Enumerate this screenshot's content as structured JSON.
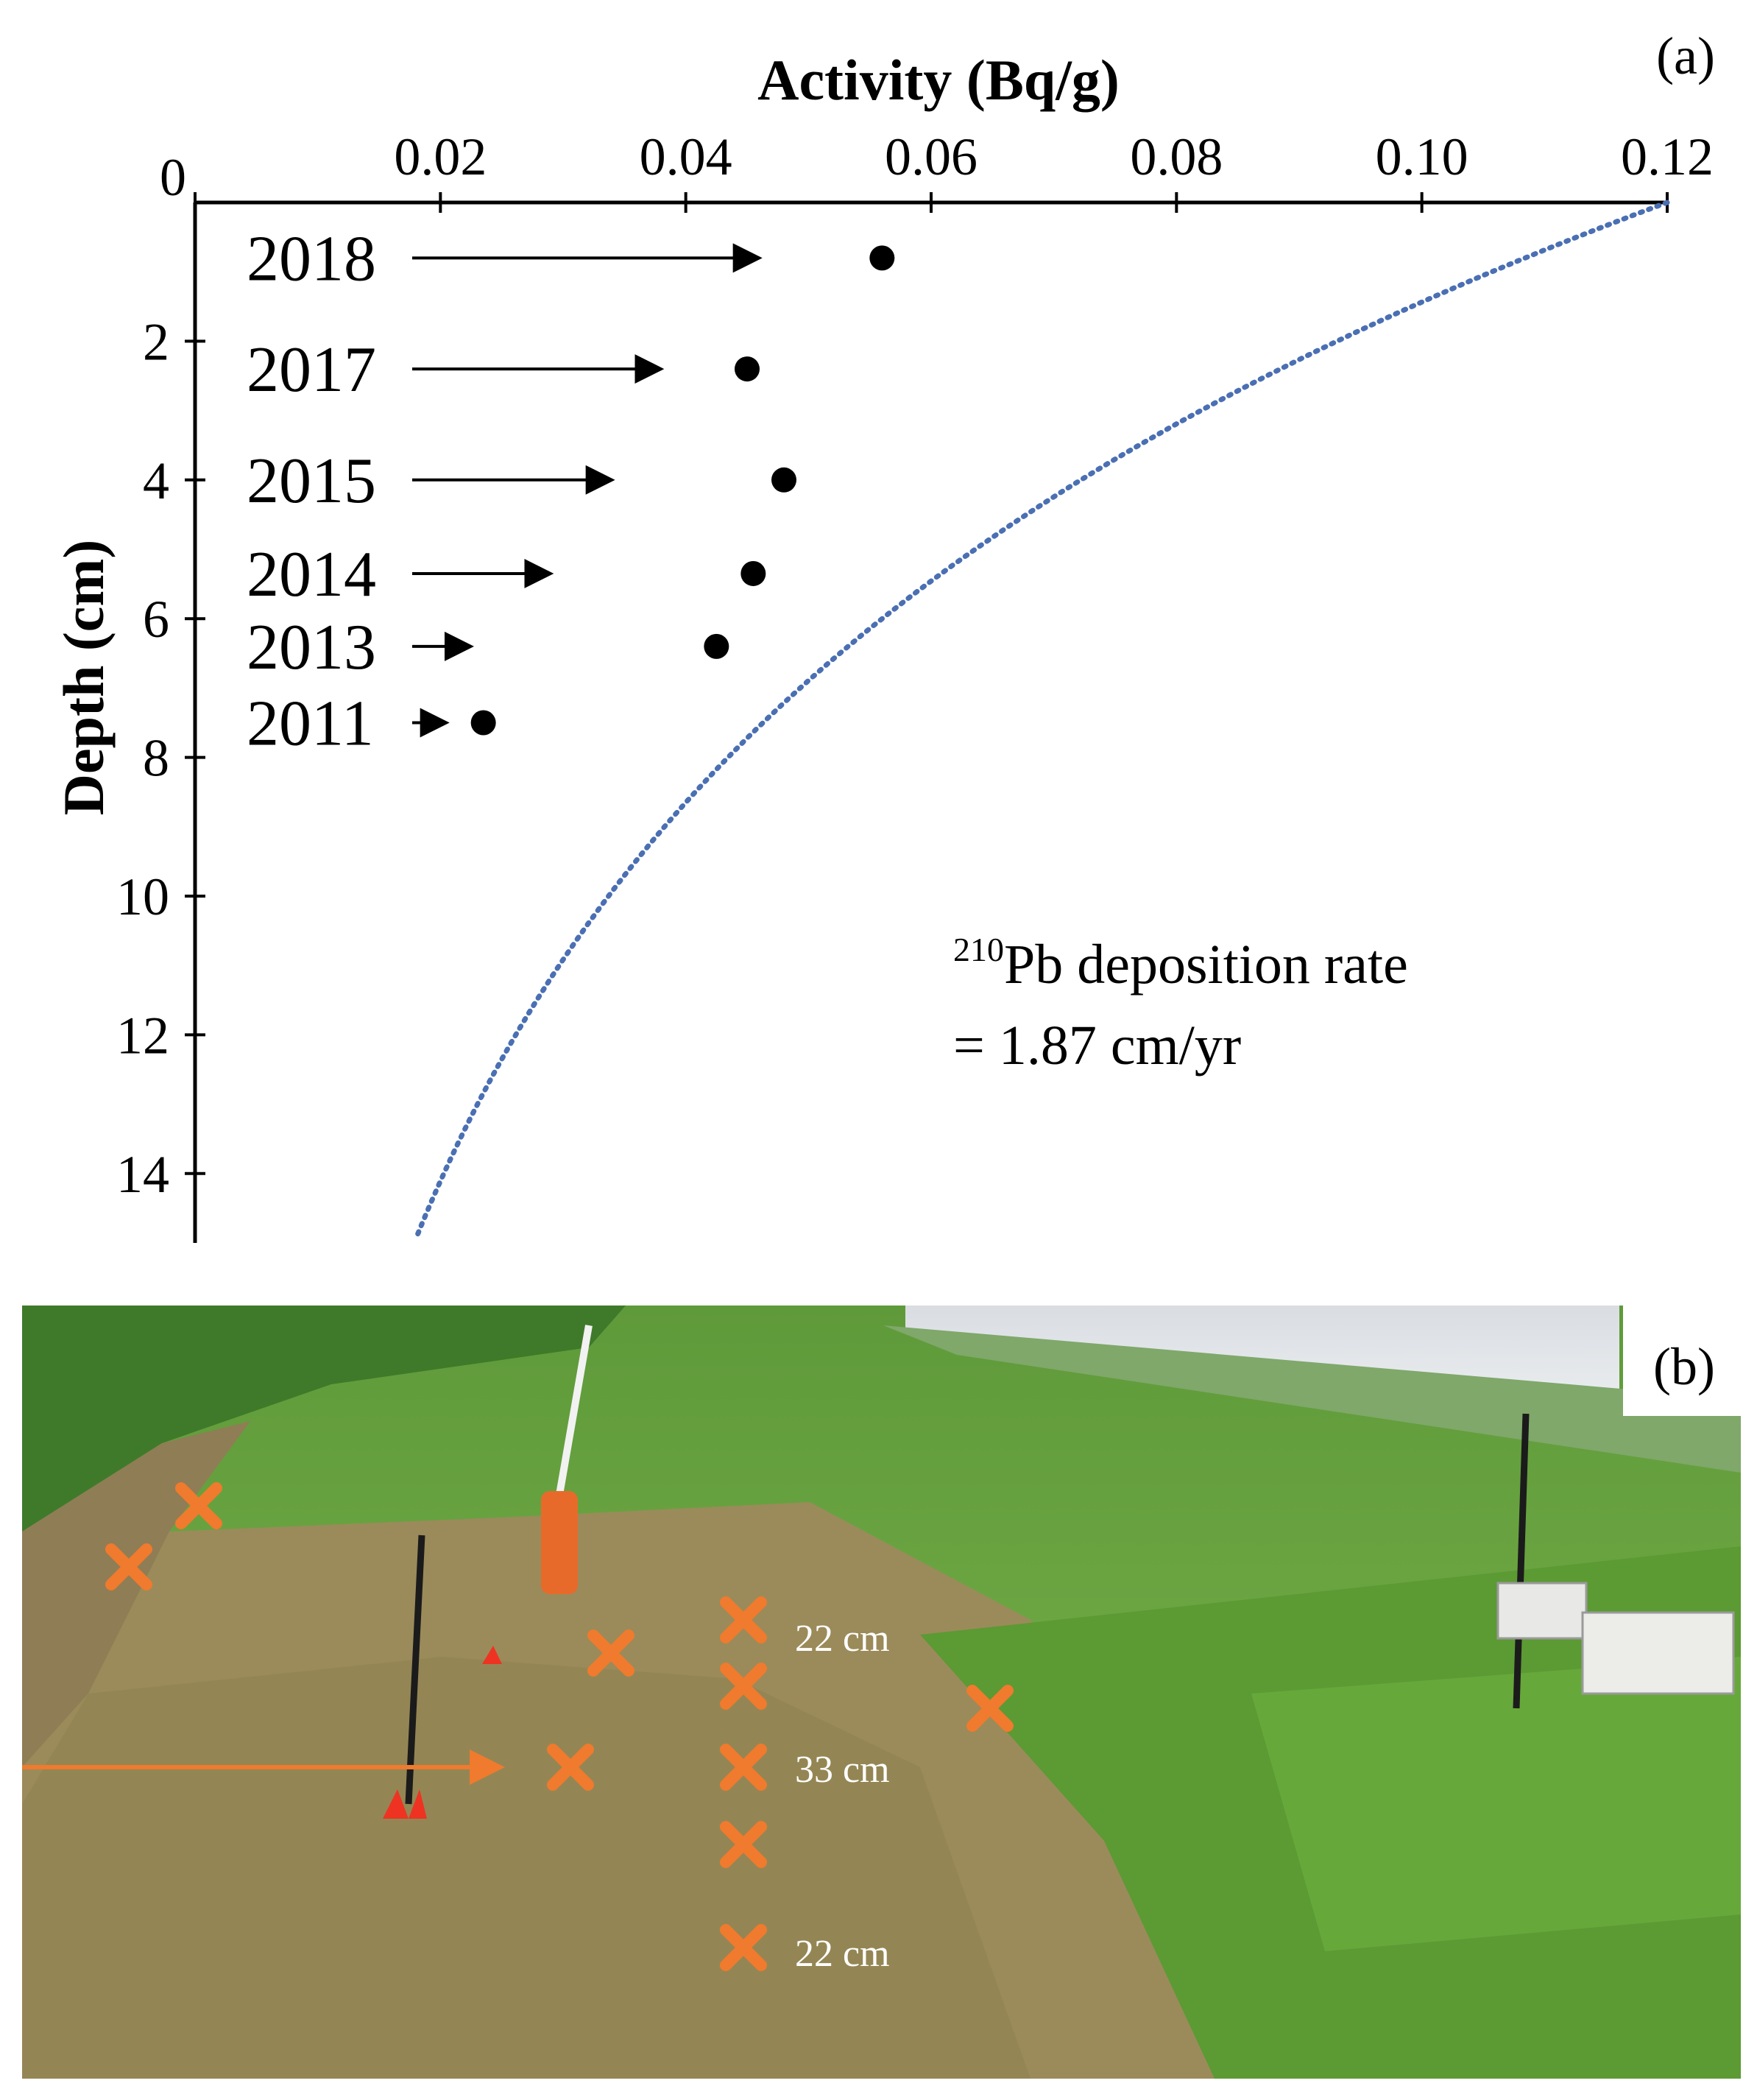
{
  "panel_a": {
    "label": "(a)",
    "chart_data": {
      "type": "scatter",
      "title": "",
      "xlabel": "Activity (Bq/g)",
      "ylabel": "Depth (cm)",
      "xlim": [
        0,
        0.12
      ],
      "ylim": [
        0,
        15
      ],
      "y_inverted": true,
      "x_axis_position": "top",
      "x_ticks": [
        "0",
        "0.02",
        "0.04",
        "0.06",
        "0.08",
        "0.10",
        "0.12"
      ],
      "x_tick_values": [
        0,
        0.02,
        0.04,
        0.06,
        0.08,
        0.1,
        0.12
      ],
      "y_ticks": [
        "2",
        "4",
        "6",
        "8",
        "10",
        "12",
        "14"
      ],
      "y_tick_values": [
        2,
        4,
        6,
        8,
        10,
        12,
        14
      ],
      "grid": false,
      "series": [
        {
          "type": "scatter",
          "color": "#000000",
          "points": [
            {
              "year": "2018",
              "x": 0.056,
              "y": 0.8
            },
            {
              "year": "2017",
              "x": 0.045,
              "y": 2.4
            },
            {
              "year": "2015",
              "x": 0.048,
              "y": 4.0
            },
            {
              "year": "2014",
              "x": 0.0455,
              "y": 5.35
            },
            {
              "year": "2013",
              "x": 0.0425,
              "y": 6.4
            },
            {
              "year": "2011",
              "x": 0.0235,
              "y": 7.5
            }
          ]
        },
        {
          "type": "line",
          "style": "dotted",
          "color": "#4a6fb3",
          "equation": "x = 0.12 * exp(-0.127 * y)",
          "x0": 0.12,
          "decay": 0.127
        }
      ],
      "annotations": [
        {
          "text": "2018",
          "arrow_to_x": 0.046,
          "y": 0.8
        },
        {
          "text": "2017",
          "arrow_to_x": 0.038,
          "y": 2.4
        },
        {
          "text": "2015",
          "arrow_to_x": 0.034,
          "y": 4.0
        },
        {
          "text": "2014",
          "arrow_to_x": 0.029,
          "y": 5.35
        },
        {
          "text": "2013",
          "arrow_to_x": 0.0225,
          "y": 6.4
        },
        {
          "text": "2011",
          "arrow_to_x": 0.0205,
          "y": 7.5
        }
      ],
      "note": {
        "superscript": "210",
        "line1": "Pb deposition rate",
        "line2": "= 1.87  cm/yr"
      }
    }
  },
  "panel_b": {
    "label": "(b)",
    "marker_color": "#f07a2d",
    "labels": [
      "22 cm",
      "33 cm",
      "22 cm"
    ]
  }
}
